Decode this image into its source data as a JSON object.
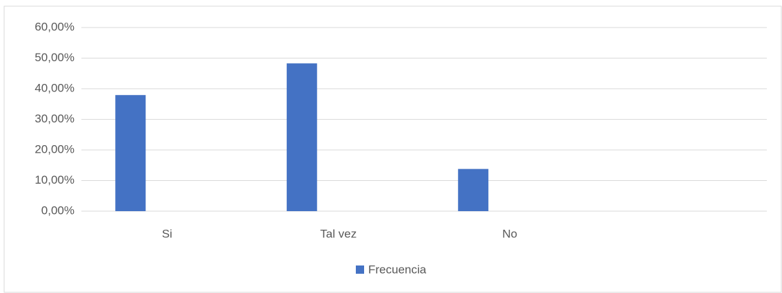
{
  "chart_data": {
    "type": "bar",
    "categories": [
      "Si",
      "Tal vez",
      "No",
      null
    ],
    "series": [
      {
        "name": "Frecuencia",
        "color": "#4472c4",
        "values": [
          37.93,
          48.28,
          13.79,
          null
        ]
      }
    ],
    "ylim": [
      0,
      60
    ],
    "yticks": [
      {
        "value": 0,
        "label": "0,00%"
      },
      {
        "value": 10,
        "label": "10,00%"
      },
      {
        "value": 20,
        "label": "20,00%"
      },
      {
        "value": 30,
        "label": "30,00%"
      },
      {
        "value": 40,
        "label": "40,00%"
      },
      {
        "value": 50,
        "label": "50,00%"
      },
      {
        "value": 60,
        "label": "60,00%"
      }
    ],
    "grid": true,
    "legend": "bottom"
  }
}
